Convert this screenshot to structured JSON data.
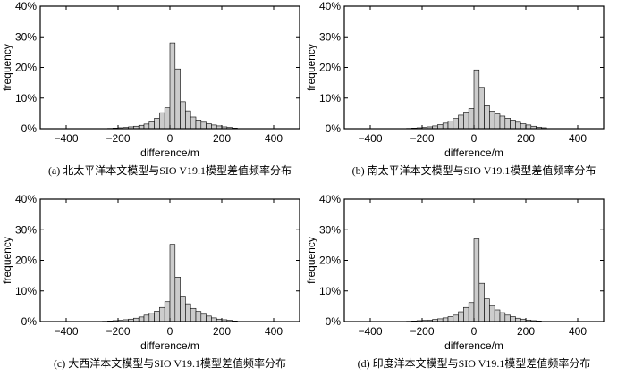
{
  "chart_data": [
    {
      "type": "bar",
      "panel": "a",
      "caption": "(a) 北太平洋本文模型与SIO V19.1模型差值频率分布",
      "xlabel": "difference/m",
      "ylabel": "frequency",
      "xlim": [
        -500,
        500
      ],
      "ylim": [
        0,
        40
      ],
      "xticks": [
        -400,
        -200,
        0,
        200,
        400
      ],
      "xtick_labels": [
        "−400",
        "−200",
        "0",
        "200",
        "400"
      ],
      "yticks": [
        0,
        10,
        20,
        30,
        40
      ],
      "ytick_labels": [
        "0%",
        "10%",
        "20%",
        "30%",
        "40%"
      ],
      "bin_width": 20,
      "bin_centers": [
        -230,
        -210,
        -190,
        -170,
        -150,
        -130,
        -110,
        -90,
        -70,
        -50,
        -30,
        -10,
        10,
        30,
        50,
        70,
        90,
        110,
        130,
        150,
        170,
        190,
        210,
        230,
        250
      ],
      "values": [
        0.1,
        0.2,
        0.3,
        0.4,
        0.6,
        0.8,
        1.1,
        1.5,
        2.2,
        3.4,
        5.2,
        6.8,
        28,
        19.5,
        8.8,
        5.8,
        3.8,
        2.8,
        2.1,
        1.6,
        1.2,
        0.9,
        0.6,
        0.4,
        0.2
      ]
    },
    {
      "type": "bar",
      "panel": "b",
      "caption": "(b) 南太平洋本文模型与SIO V19.1模型差值频率分布",
      "xlabel": "difference/m",
      "ylabel": "frequency",
      "xlim": [
        -500,
        500
      ],
      "ylim": [
        0,
        40
      ],
      "xticks": [
        -400,
        -200,
        0,
        200,
        400
      ],
      "xtick_labels": [
        "−400",
        "−200",
        "0",
        "200",
        "400"
      ],
      "yticks": [
        0,
        10,
        20,
        30,
        40
      ],
      "ytick_labels": [
        "0%",
        "10%",
        "20%",
        "30%",
        "40%"
      ],
      "bin_width": 20,
      "bin_centers": [
        -250,
        -230,
        -210,
        -190,
        -170,
        -150,
        -130,
        -110,
        -90,
        -70,
        -50,
        -30,
        -10,
        10,
        30,
        50,
        70,
        90,
        110,
        130,
        150,
        170,
        190,
        210,
        230,
        250,
        270
      ],
      "values": [
        0.1,
        0.2,
        0.3,
        0.4,
        0.6,
        0.9,
        1.3,
        1.8,
        2.5,
        3.3,
        4.4,
        5.4,
        6.6,
        19.2,
        13.5,
        7.5,
        5.7,
        4.8,
        4.1,
        3.4,
        2.8,
        2.1,
        1.6,
        1.2,
        0.8,
        0.5,
        0.3
      ]
    },
    {
      "type": "bar",
      "panel": "c",
      "caption": "(c) 大西洋本文模型与SIO V19.1模型差值频率分布",
      "xlabel": "difference/m",
      "ylabel": "frequency",
      "xlim": [
        -500,
        500
      ],
      "ylim": [
        0,
        40
      ],
      "xticks": [
        -400,
        -200,
        0,
        200,
        400
      ],
      "xtick_labels": [
        "−400",
        "−200",
        "0",
        "200",
        "400"
      ],
      "yticks": [
        0,
        10,
        20,
        30,
        40
      ],
      "ytick_labels": [
        "0%",
        "10%",
        "20%",
        "30%",
        "40%"
      ],
      "bin_width": 20,
      "bin_centers": [
        -250,
        -230,
        -210,
        -190,
        -170,
        -150,
        -130,
        -110,
        -90,
        -70,
        -50,
        -30,
        -10,
        10,
        30,
        50,
        70,
        90,
        110,
        130,
        150,
        170,
        190,
        210,
        230,
        250
      ],
      "values": [
        0.1,
        0.2,
        0.3,
        0.4,
        0.6,
        0.8,
        1.1,
        1.5,
        2.1,
        2.7,
        3.4,
        4.6,
        6.5,
        25.2,
        14.5,
        8.3,
        5.8,
        4.3,
        3.3,
        2.4,
        1.8,
        1.2,
        0.8,
        0.6,
        0.4,
        0.2
      ]
    },
    {
      "type": "bar",
      "panel": "d",
      "caption": "(d) 印度洋本文模型与SIO V19.1模型差值频率分布",
      "xlabel": "difference/m",
      "ylabel": "frequency",
      "xlim": [
        -500,
        500
      ],
      "ylim": [
        0,
        40
      ],
      "xticks": [
        -400,
        -200,
        0,
        200,
        400
      ],
      "xtick_labels": [
        "−400",
        "−200",
        "0",
        "200",
        "400"
      ],
      "yticks": [
        0,
        10,
        20,
        30,
        40
      ],
      "ytick_labels": [
        "0%",
        "10%",
        "20%",
        "30%",
        "40%"
      ],
      "bin_width": 20,
      "bin_centers": [
        -250,
        -230,
        -210,
        -190,
        -170,
        -150,
        -130,
        -110,
        -90,
        -70,
        -50,
        -30,
        -10,
        10,
        30,
        50,
        70,
        90,
        110,
        130,
        150,
        170,
        190,
        210,
        230,
        250
      ],
      "values": [
        0.1,
        0.2,
        0.3,
        0.4,
        0.5,
        0.7,
        0.9,
        1.2,
        1.6,
        2.1,
        3.2,
        4.6,
        6.2,
        27,
        12.5,
        7.4,
        5.2,
        3.8,
        2.9,
        2.1,
        1.6,
        1.1,
        0.8,
        0.5,
        0.3,
        0.2
      ]
    }
  ]
}
